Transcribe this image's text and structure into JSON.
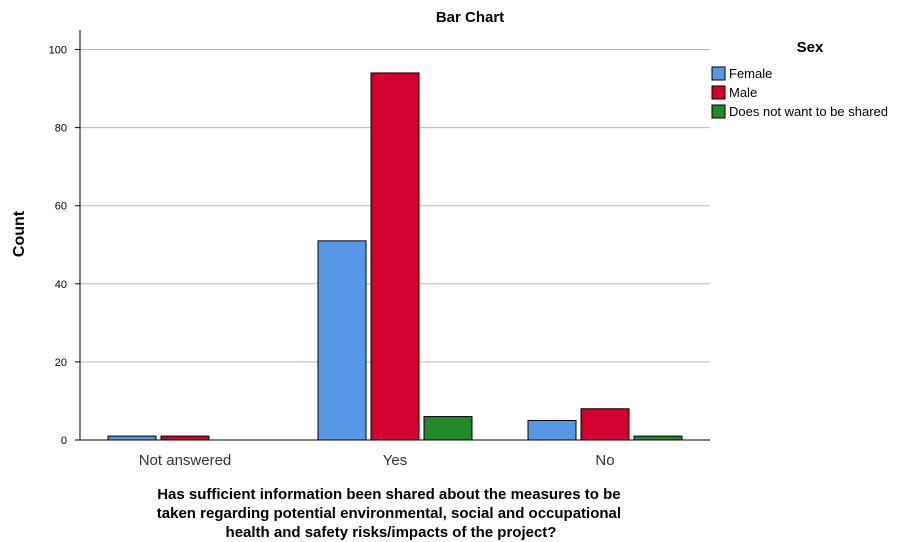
{
  "chart_data": {
    "type": "bar",
    "title": "Bar Chart",
    "xlabel": "Has sufficient information been shared about the measures to be taken regarding potential environmental, social and occupational health and safety risks/impacts of the project?",
    "xlabel_lines": [
      "Has sufficient information been shared about the measures to be",
      "taken regarding potential environmental, social and occupational",
      "health and safety risks/impacts of the project?"
    ],
    "ylabel": "Count",
    "ylim": [
      0,
      105
    ],
    "yticks": [
      0,
      20,
      40,
      60,
      80,
      100
    ],
    "grid": true,
    "categories": [
      "Not answered",
      "Yes",
      "No"
    ],
    "series": [
      {
        "name": "Female",
        "color": "#5698e6",
        "values": [
          1,
          51,
          5
        ]
      },
      {
        "name": "Male",
        "color": "#d3002d",
        "values": [
          1,
          94,
          8
        ]
      },
      {
        "name": "Does not want to be shared",
        "color": "#23892a",
        "values": [
          0,
          6,
          1
        ]
      }
    ],
    "legend": {
      "title": "Sex",
      "placement": "right"
    }
  }
}
